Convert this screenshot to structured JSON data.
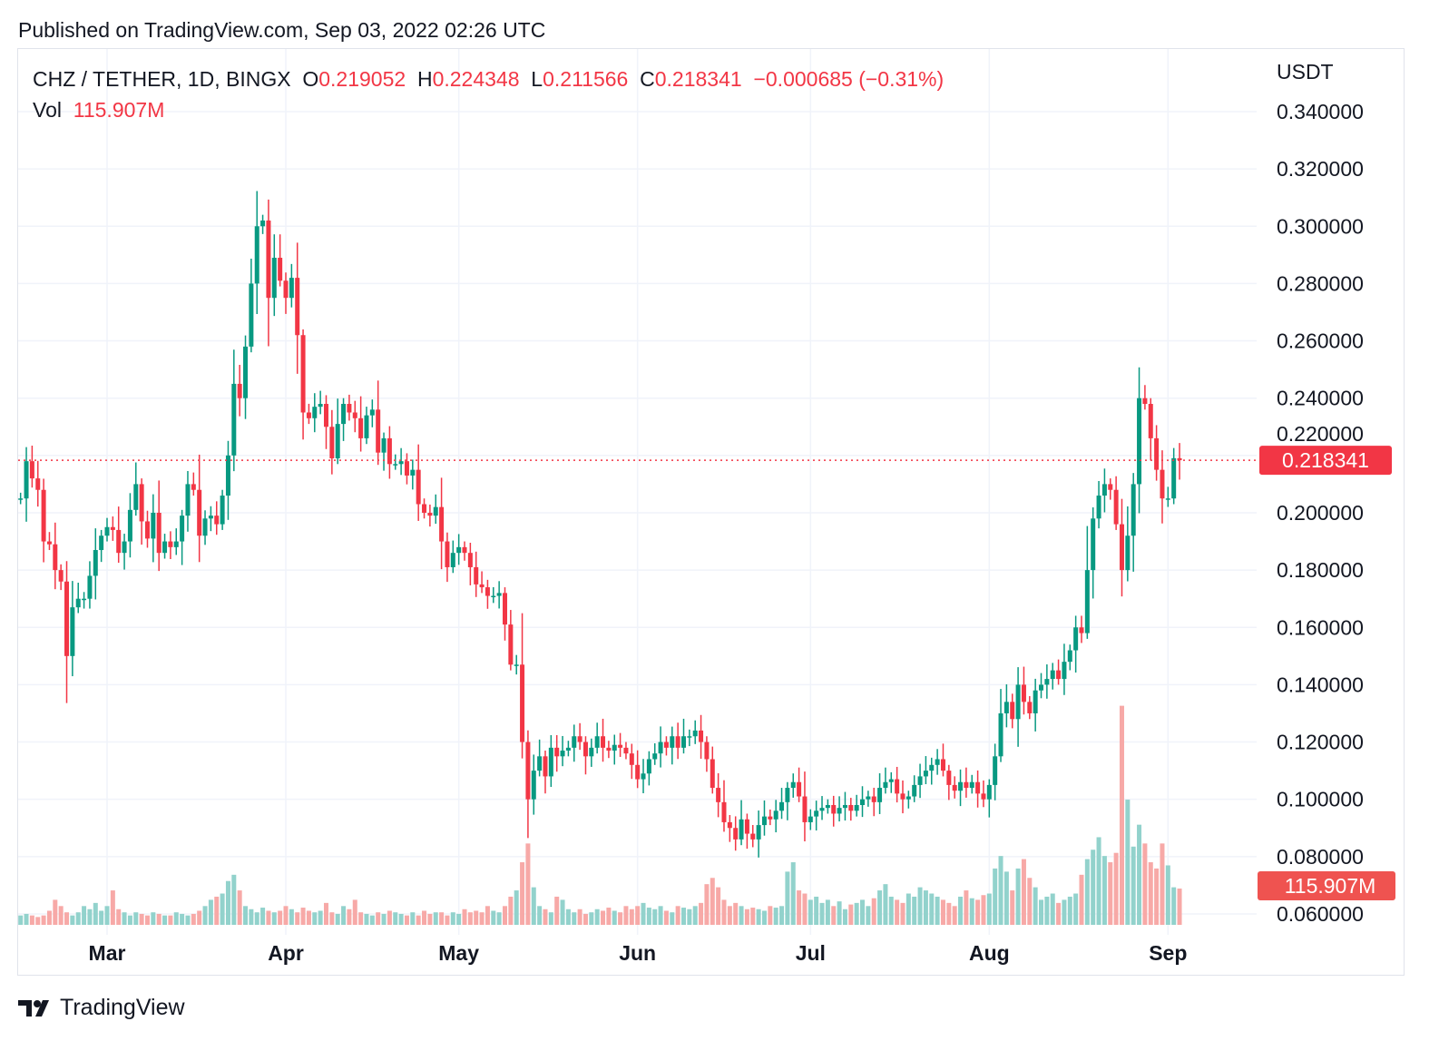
{
  "published": "Published on TradingView.com, Sep 03, 2022 02:26 UTC",
  "legend": {
    "symbol": "CHZ / TETHER, 1D, BINGX",
    "o_label": "O",
    "o": "0.219052",
    "h_label": "H",
    "h": "0.224348",
    "l_label": "L",
    "l": "0.211566",
    "c_label": "C",
    "c": "0.218341",
    "change": "−0.000685 (−0.31%)",
    "vol_label": "Vol",
    "vol": "115.907M"
  },
  "colors": {
    "up": "#089981",
    "down": "#F23645",
    "vol_up": "#92D2CC",
    "vol_down": "#F7A9A7",
    "grid": "#f0f3fa"
  },
  "logo": "TradingView",
  "chart_data": {
    "type": "candlestick",
    "title": "CHZ / TETHER, 1D, BINGX",
    "ylabel": "USDT",
    "ylim": [
      0.06,
      0.34
    ],
    "yticks": [
      "0.340000",
      "0.320000",
      "0.300000",
      "0.280000",
      "0.260000",
      "0.240000",
      "0.220000",
      "0.200000",
      "0.180000",
      "0.160000",
      "0.140000",
      "0.120000",
      "0.100000",
      "0.080000",
      "0.060000"
    ],
    "xticks": [
      {
        "label": "Mar",
        "date": "2022-03-01"
      },
      {
        "label": "Apr",
        "date": "2022-04-01"
      },
      {
        "label": "May",
        "date": "2022-05-01"
      },
      {
        "label": "Jun",
        "date": "2022-06-01"
      },
      {
        "label": "Jul",
        "date": "2022-07-01"
      },
      {
        "label": "Aug",
        "date": "2022-08-01"
      },
      {
        "label": "Sep",
        "date": "2022-09-01"
      }
    ],
    "grid": true,
    "last_price": "0.218341",
    "last_volume": "115.907M",
    "first_open": 0.205,
    "months": [
      {
        "month": "2022-02",
        "start_day": 14,
        "close": [
          0.205,
          0.218,
          0.212,
          0.208,
          0.19,
          0.189,
          0.18,
          0.176,
          0.15,
          0.167,
          0.17,
          0.17,
          0.178,
          0.187,
          0.192
        ],
        "volume_m": [
          30,
          35,
          30,
          25,
          30,
          45,
          80,
          60,
          40,
          30,
          40,
          60,
          50,
          70,
          45
        ]
      },
      {
        "month": "2022-03",
        "start_day": 1,
        "close": [
          0.195,
          0.194,
          0.186,
          0.19,
          0.201,
          0.21,
          0.197,
          0.191,
          0.2,
          0.186,
          0.19,
          0.188,
          0.19,
          0.199,
          0.21,
          0.208,
          0.192,
          0.198,
          0.199,
          0.196,
          0.206,
          0.22,
          0.245,
          0.24,
          0.258,
          0.28,
          0.3,
          0.302,
          0.275,
          0.289,
          0.281
        ],
        "volume_m": [
          60,
          110,
          50,
          40,
          30,
          40,
          35,
          30,
          40,
          35,
          30,
          30,
          40,
          35,
          30,
          35,
          45,
          60,
          80,
          90,
          100,
          140,
          160,
          110,
          60,
          50,
          40,
          55,
          45,
          40,
          45
        ]
      },
      {
        "month": "2022-04",
        "start_day": 1,
        "close": [
          0.275,
          0.282,
          0.262,
          0.235,
          0.233,
          0.237,
          0.238,
          0.23,
          0.219,
          0.231,
          0.238,
          0.235,
          0.233,
          0.226,
          0.234,
          0.236,
          0.221,
          0.226,
          0.217,
          0.217,
          0.218,
          0.213,
          0.215,
          0.203,
          0.2,
          0.199,
          0.202,
          0.19,
          0.181,
          0.186
        ],
        "volume_m": [
          60,
          50,
          40,
          55,
          45,
          40,
          45,
          70,
          40,
          35,
          60,
          50,
          80,
          40,
          35,
          30,
          40,
          35,
          45,
          40,
          35,
          30,
          40,
          30,
          45,
          35,
          40,
          40,
          30,
          40
        ]
      },
      {
        "month": "2022-05",
        "start_day": 1,
        "close": [
          0.188,
          0.186,
          0.181,
          0.175,
          0.174,
          0.171,
          0.171,
          0.172,
          0.161,
          0.147,
          0.147,
          0.12,
          0.1,
          0.11,
          0.115,
          0.108,
          0.118,
          0.115,
          0.117,
          0.118,
          0.122,
          0.12,
          0.115,
          0.118,
          0.122,
          0.118,
          0.117,
          0.119,
          0.118,
          0.116,
          0.112
        ],
        "volume_m": [
          35,
          50,
          40,
          45,
          40,
          60,
          45,
          40,
          60,
          90,
          110,
          200,
          260,
          120,
          60,
          50,
          40,
          90,
          80,
          50,
          40,
          50,
          35,
          40,
          50,
          45,
          55,
          45,
          40,
          60,
          50
        ]
      },
      {
        "month": "2022-06",
        "start_day": 1,
        "close": [
          0.107,
          0.109,
          0.114,
          0.116,
          0.12,
          0.118,
          0.122,
          0.118,
          0.122,
          0.122,
          0.124,
          0.12,
          0.114,
          0.104,
          0.099,
          0.092,
          0.09,
          0.086,
          0.093,
          0.088,
          0.086,
          0.091,
          0.094,
          0.093,
          0.096,
          0.099,
          0.104,
          0.106,
          0.101,
          0.092
        ],
        "volume_m": [
          60,
          70,
          55,
          50,
          60,
          45,
          40,
          60,
          55,
          50,
          60,
          70,
          130,
          150,
          120,
          80,
          60,
          70,
          60,
          50,
          55,
          50,
          45,
          60,
          55,
          60,
          170,
          200,
          110,
          100
        ]
      },
      {
        "month": "2022-07",
        "start_day": 1,
        "close": [
          0.094,
          0.096,
          0.097,
          0.098,
          0.095,
          0.097,
          0.098,
          0.096,
          0.098,
          0.1,
          0.101,
          0.099,
          0.104,
          0.106,
          0.107,
          0.102,
          0.1,
          0.101,
          0.105,
          0.108,
          0.11,
          0.112,
          0.114,
          0.11,
          0.105,
          0.103,
          0.106,
          0.104,
          0.106,
          0.102,
          0.1
        ],
        "volume_m": [
          80,
          90,
          70,
          80,
          60,
          75,
          50,
          65,
          70,
          80,
          60,
          85,
          110,
          130,
          90,
          80,
          70,
          100,
          90,
          120,
          110,
          100,
          90,
          80,
          70,
          60,
          90,
          110,
          85,
          80,
          95
        ]
      },
      {
        "month": "2022-08",
        "start_day": 1,
        "close": [
          0.105,
          0.115,
          0.13,
          0.134,
          0.128,
          0.14,
          0.134,
          0.13,
          0.138,
          0.14,
          0.142,
          0.145,
          0.142,
          0.148,
          0.152,
          0.16,
          0.158,
          0.18,
          0.198,
          0.206,
          0.21,
          0.208,
          0.196,
          0.18,
          0.192,
          0.21,
          0.24,
          0.238,
          0.226,
          0.215,
          0.205
        ],
        "volume_m": [
          100,
          180,
          220,
          170,
          110,
          180,
          210,
          150,
          120,
          80,
          90,
          100,
          70,
          80,
          90,
          100,
          160,
          210,
          240,
          280,
          220,
          200,
          230,
          700,
          400,
          250,
          320,
          260,
          200,
          180,
          260
        ]
      },
      {
        "month": "2022-09",
        "start_day": 1,
        "close": [
          0.205,
          0.219052,
          0.218341
        ],
        "volume_m": [
          190,
          120,
          115.907
        ]
      }
    ],
    "last_candle": {
      "date": "2022-09-03",
      "open": 0.219052,
      "high": 0.224348,
      "low": 0.211566,
      "close": 0.218341,
      "volume": "115.907M"
    }
  }
}
